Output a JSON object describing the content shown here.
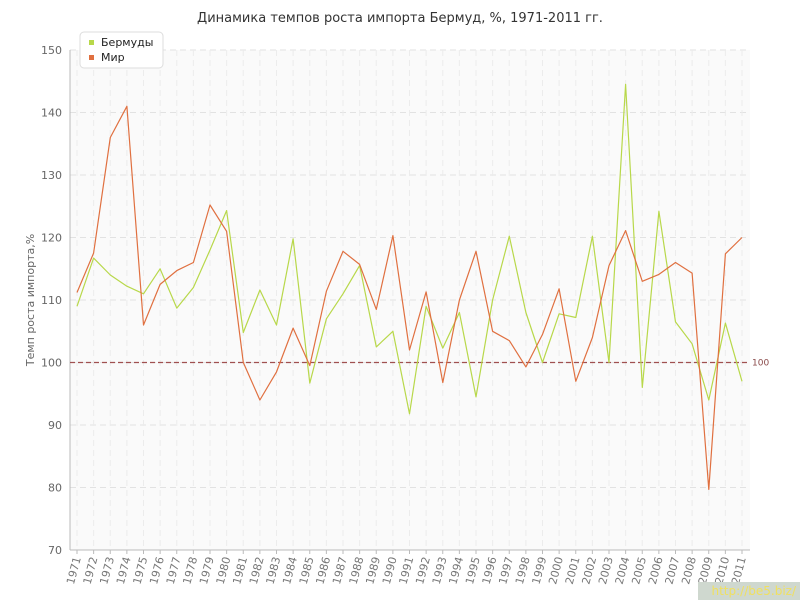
{
  "chart_data": {
    "type": "line",
    "title": "Динамика темпов роста импорта Бермуд, %, 1971-2011 гг.",
    "ylabel": "Темп роста импорта,%",
    "xlabel": "",
    "ylim": [
      70,
      150
    ],
    "yticks": [
      70,
      80,
      90,
      100,
      110,
      120,
      130,
      140,
      150
    ],
    "grid": true,
    "legend_position": "top-left",
    "reference_line": {
      "value": 100,
      "label": "100",
      "color": "#a05050"
    },
    "x": [
      "1971",
      "1972",
      "1973",
      "1974",
      "1975",
      "1976",
      "1977",
      "1978",
      "1979",
      "1980",
      "1981",
      "1982",
      "1983",
      "1984",
      "1985",
      "1986",
      "1987",
      "1988",
      "1989",
      "1990",
      "1991",
      "1992",
      "1993",
      "1994",
      "1995",
      "1996",
      "1997",
      "1998",
      "1999",
      "2000",
      "2001",
      "2002",
      "2003",
      "2004",
      "2005",
      "2006",
      "2007",
      "2008",
      "2009",
      "2010",
      "2011"
    ],
    "series": [
      {
        "name": "Бермуды",
        "color": "#b8d84a",
        "values": [
          109,
          116.7,
          114,
          112.2,
          111,
          115,
          108.7,
          112,
          118,
          124.3,
          104.8,
          111.6,
          106,
          119.8,
          96.7,
          107,
          111,
          115.5,
          102.5,
          105,
          91.8,
          109,
          102.3,
          108,
          94.5,
          110,
          120.2,
          108,
          100,
          107.8,
          107.2,
          120.2,
          100,
          144.5,
          96,
          124.2,
          106.5,
          103,
          94,
          106.3,
          97
        ]
      },
      {
        "name": "Мир",
        "color": "#e07040",
        "values": [
          111.2,
          117.5,
          136,
          141,
          106,
          112.5,
          114.7,
          116,
          125.2,
          121,
          100,
          94,
          98.5,
          105.5,
          99.5,
          111.4,
          117.8,
          115.7,
          108.5,
          120.3,
          102,
          111.3,
          96.8,
          110,
          117.8,
          105,
          103.5,
          99.3,
          104.5,
          111.8,
          97,
          104,
          115.5,
          121.1,
          113,
          114.1,
          116,
          114.3,
          79.7,
          117.4,
          120
        ]
      }
    ]
  },
  "watermark": "http://be5.biz/"
}
